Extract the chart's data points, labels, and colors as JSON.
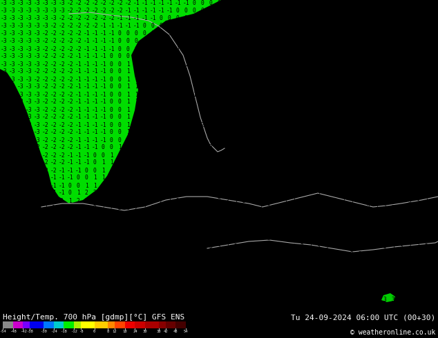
{
  "title_left": "Height/Temp. 700 hPa [gdmp][°C] GFS ENS",
  "title_right": "Tu 24-09-2024 06:00 UTC (00+30)",
  "copyright": "© weatheronline.co.uk",
  "fig_width": 6.34,
  "fig_height": 4.9,
  "dpi": 100,
  "map_yellow": "#ffff00",
  "map_green": "#00dd00",
  "map_green2": "#00cc00",
  "bar_bg": "#000000",
  "text_color": "#ffffff",
  "colorbar_segments": [
    {
      "color": "#888888",
      "v0": -54,
      "v1": -48
    },
    {
      "color": "#cc00cc",
      "v0": -48,
      "v1": -42
    },
    {
      "color": "#7700ff",
      "v0": -42,
      "v1": -38
    },
    {
      "color": "#0000ee",
      "v0": -38,
      "v1": -30
    },
    {
      "color": "#0077ff",
      "v0": -30,
      "v1": -24
    },
    {
      "color": "#00cccc",
      "v0": -24,
      "v1": -18
    },
    {
      "color": "#00ee00",
      "v0": -18,
      "v1": -12
    },
    {
      "color": "#aaee00",
      "v0": -12,
      "v1": -8
    },
    {
      "color": "#ffff00",
      "v0": -8,
      "v1": 0
    },
    {
      "color": "#ffcc00",
      "v0": 0,
      "v1": 8
    },
    {
      "color": "#ff8800",
      "v0": 8,
      "v1": 12
    },
    {
      "color": "#ff4400",
      "v0": 12,
      "v1": 18
    },
    {
      "color": "#ee0000",
      "v0": 18,
      "v1": 24
    },
    {
      "color": "#cc0000",
      "v0": 24,
      "v1": 30
    },
    {
      "color": "#aa0000",
      "v0": 30,
      "v1": 38
    },
    {
      "color": "#880000",
      "v0": 38,
      "v1": 42
    },
    {
      "color": "#660000",
      "v0": 42,
      "v1": 48
    },
    {
      "color": "#440000",
      "v0": 48,
      "v1": 54
    }
  ],
  "colorbar_ticks": [
    -54,
    -48,
    -42,
    -38,
    -30,
    -24,
    -18,
    -12,
    -8,
    0,
    8,
    12,
    18,
    24,
    30,
    38,
    42,
    48,
    54
  ],
  "colorbar_vmin": -54,
  "colorbar_vmax": 54
}
